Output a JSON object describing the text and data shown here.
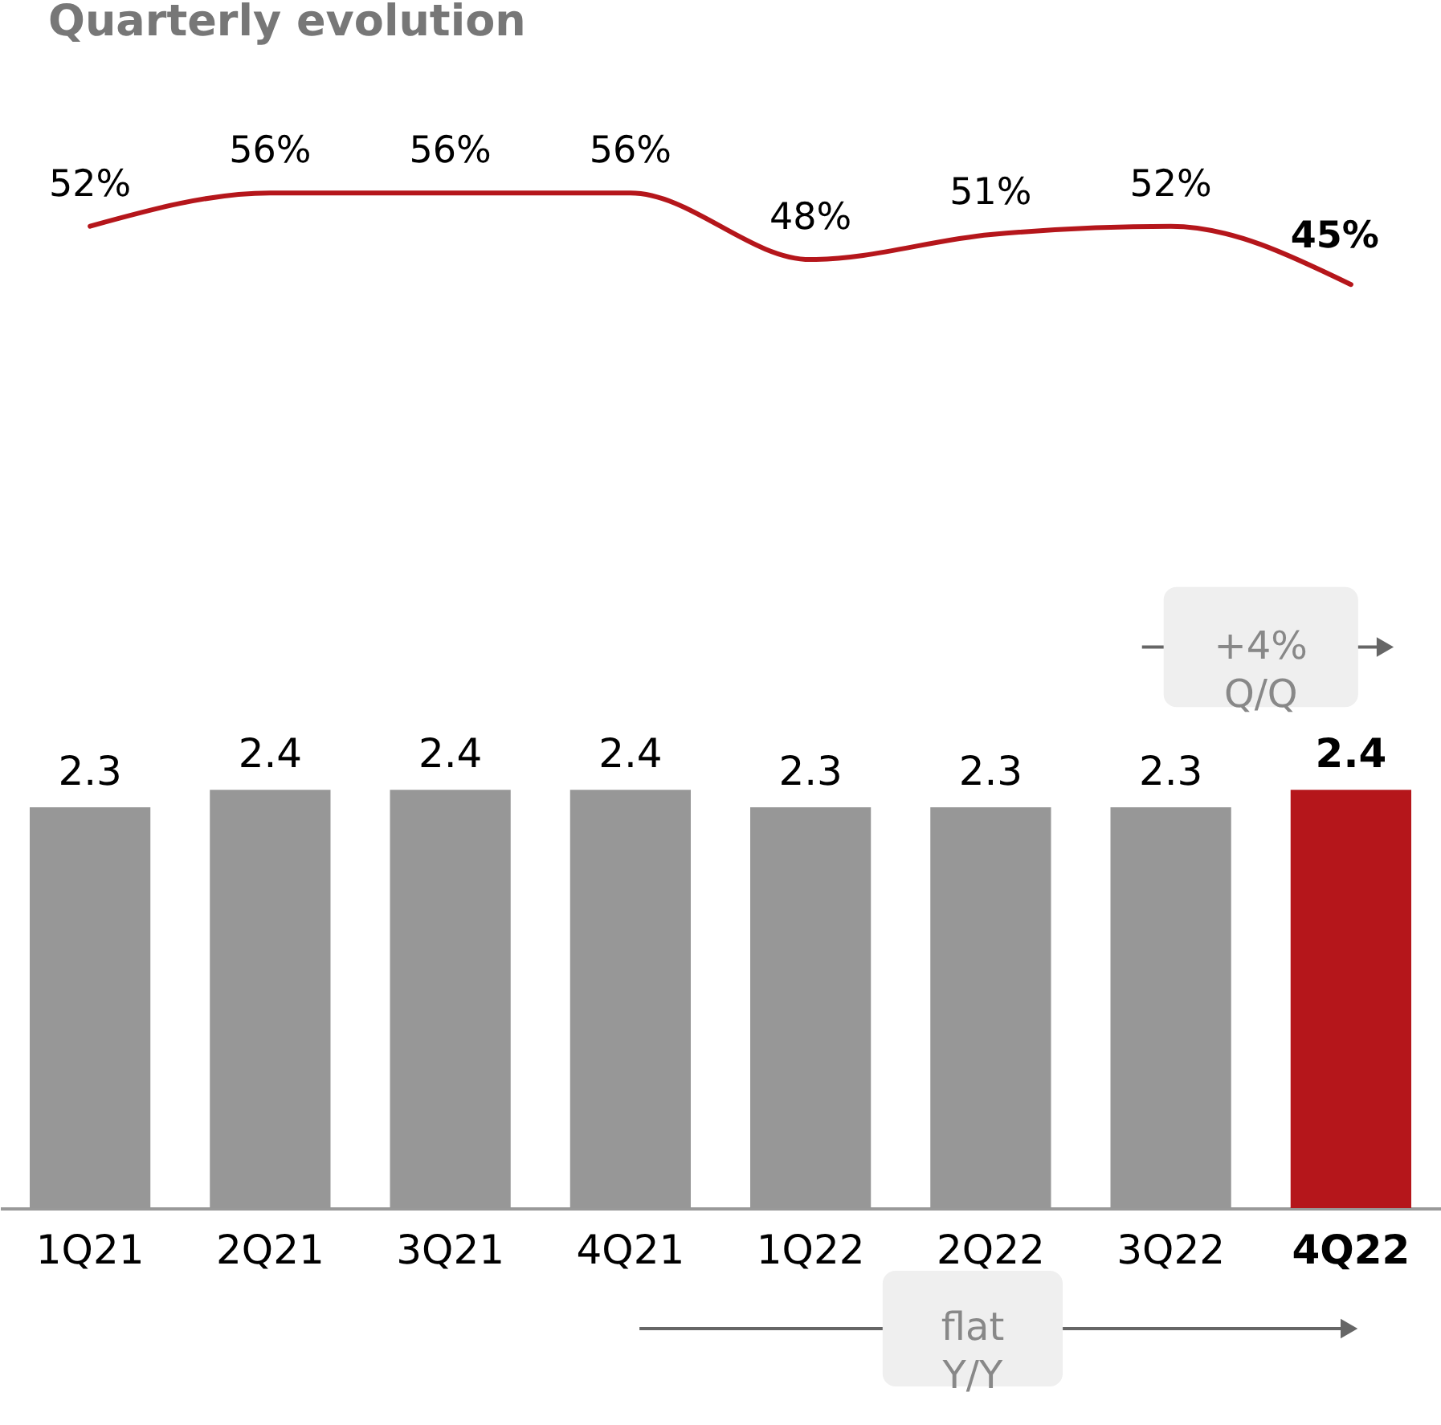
{
  "chart_data": [
    {
      "type": "line",
      "title": "Quarterly evolution",
      "categories": [
        null,
        null,
        null,
        null,
        null,
        null,
        null,
        null
      ],
      "series": [
        {
          "color": "#b5161b",
          "values": [
            52,
            56,
            56,
            56,
            48,
            51,
            52,
            45
          ],
          "value_labels": [
            "52%",
            "56%",
            "56%",
            "56%",
            "48%",
            "51%",
            "52%",
            "45%"
          ]
        }
      ]
    },
    {
      "type": "bar",
      "categories": [
        "1Q21",
        "2Q21",
        "3Q21",
        "4Q21",
        "1Q22",
        "2Q22",
        "3Q22",
        "4Q22"
      ],
      "series": [
        {
          "colors": [
            "#979797",
            "#979797",
            "#979797",
            "#979797",
            "#979797",
            "#979797",
            "#979797",
            "#b5161b"
          ],
          "values": [
            2.3,
            2.4,
            2.4,
            2.4,
            2.3,
            2.3,
            2.3,
            2.4
          ]
        }
      ],
      "data_labels": true,
      "annotations": [
        "+4%\nQ/Q",
        "flat\nY/Y"
      ]
    }
  ]
}
